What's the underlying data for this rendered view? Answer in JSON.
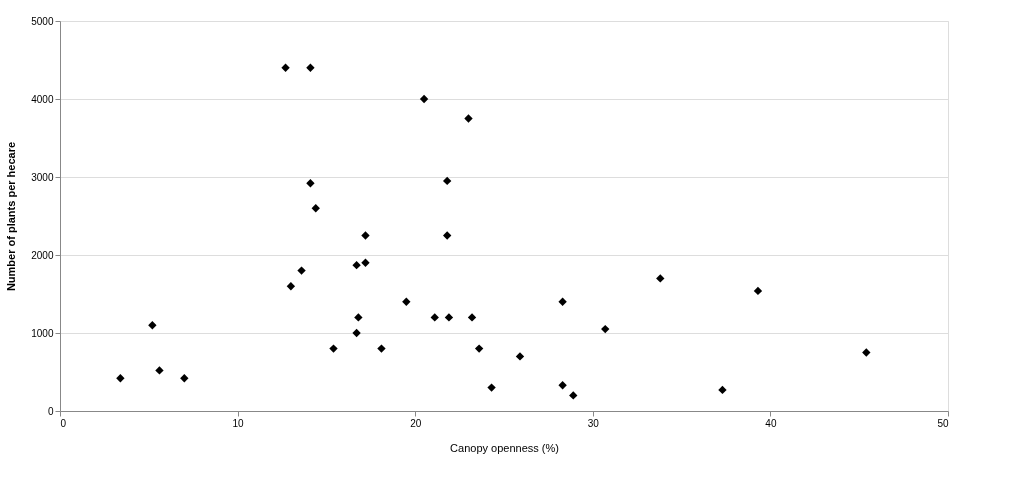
{
  "chart_data": {
    "type": "scatter",
    "xlabel": "Canopy openness (%)",
    "ylabel": "Number of plants per hecare",
    "x": [
      3.4,
      5.2,
      5.6,
      7.0,
      12.7,
      13.0,
      13.6,
      14.1,
      14.1,
      14.4,
      15.4,
      16.7,
      16.8,
      16.7,
      17.2,
      17.2,
      18.1,
      19.5,
      20.5,
      21.1,
      21.8,
      21.8,
      21.9,
      23.0,
      23.2,
      23.6,
      24.3,
      25.9,
      28.3,
      28.3,
      28.9,
      30.7,
      33.8,
      37.3,
      39.3,
      45.4
    ],
    "series": [
      {
        "color": "#000000",
        "values": [
          420,
          1100,
          520,
          420,
          4400,
          1600,
          1800,
          4400,
          2920,
          2600,
          800,
          1000,
          1200,
          1870,
          1900,
          2250,
          800,
          1400,
          4000,
          1200,
          2950,
          2250,
          1200,
          3750,
          1200,
          800,
          300,
          700,
          1400,
          330,
          200,
          1050,
          1700,
          270,
          1540,
          750
        ]
      }
    ],
    "xlim": [
      0,
      50
    ],
    "xticks": [
      0,
      10,
      20,
      30,
      40,
      50
    ],
    "ylim": [
      0,
      5000
    ],
    "yticks": [
      0,
      1000,
      2000,
      3000,
      4000,
      5000
    ],
    "grid": "y",
    "marker": "diamond"
  }
}
